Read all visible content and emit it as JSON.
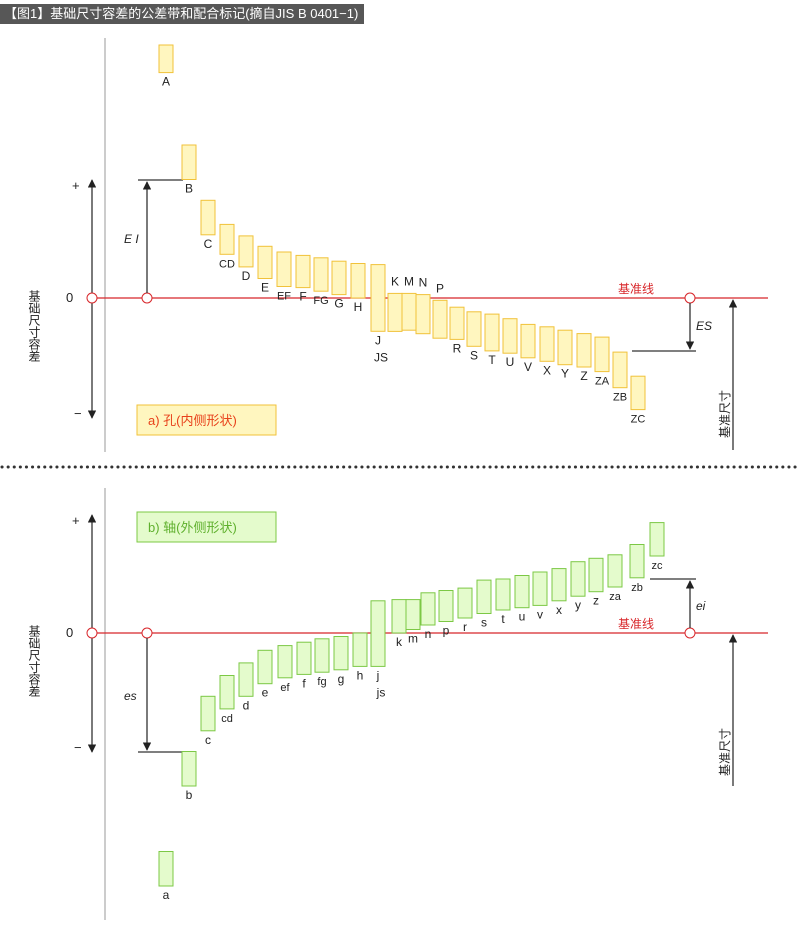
{
  "title": "【图1】基础尺寸容差的公差带和配合标记(摘自JIS B 0401−1)",
  "colors": {
    "hole_fill": "#fff6bf",
    "hole_stroke": "#f1c23a",
    "shaft_fill": "#e4fbcc",
    "shaft_stroke": "#7cc845",
    "zero_line": "#d8262a",
    "hole_label": "#e8411b",
    "shaft_label": "#5fb02d",
    "title_bg": "#575757"
  },
  "hole_section": {
    "label": "a)  孔(内侧形状)",
    "axis_title": "基础尺寸容差",
    "plus": "+",
    "zero": "0",
    "minus": "−",
    "baseline_label": "基准线",
    "deviation_lower": "E I",
    "deviation_upper": "ES",
    "basic_size": "基准尺寸",
    "bands": [
      {
        "name": "A",
        "upper": 2.2,
        "lower": 1.96
      },
      {
        "name": "B",
        "upper": 1.33,
        "lower": 1.03
      },
      {
        "name": "C",
        "upper": 0.85,
        "lower": 0.55
      },
      {
        "name": "CD",
        "upper": 0.64,
        "lower": 0.38
      },
      {
        "name": "D",
        "upper": 0.54,
        "lower": 0.27
      },
      {
        "name": "E",
        "upper": 0.45,
        "lower": 0.17
      },
      {
        "name": "EF",
        "upper": 0.4,
        "lower": 0.1
      },
      {
        "name": "F",
        "upper": 0.37,
        "lower": 0.09
      },
      {
        "name": "FG",
        "upper": 0.35,
        "lower": 0.06
      },
      {
        "name": "G",
        "upper": 0.32,
        "lower": 0.03
      },
      {
        "name": "H",
        "upper": 0.3,
        "lower": 0.0
      },
      {
        "name": "J",
        "upper": 0.29,
        "lower": -0.29
      },
      {
        "name": "K",
        "upper": 0.04,
        "lower": -0.29
      },
      {
        "name": "M",
        "upper": 0.04,
        "lower": -0.28
      },
      {
        "name": "N",
        "upper": 0.03,
        "lower": -0.31
      },
      {
        "name": "P",
        "upper": -0.02,
        "lower": -0.35
      },
      {
        "name": "R",
        "upper": -0.08,
        "lower": -0.36
      },
      {
        "name": "S",
        "upper": -0.12,
        "lower": -0.42
      },
      {
        "name": "T",
        "upper": -0.14,
        "lower": -0.46
      },
      {
        "name": "U",
        "upper": -0.18,
        "lower": -0.48
      },
      {
        "name": "V",
        "upper": -0.23,
        "lower": -0.52
      },
      {
        "name": "X",
        "upper": -0.25,
        "lower": -0.55
      },
      {
        "name": "Y",
        "upper": -0.28,
        "lower": -0.58
      },
      {
        "name": "Z",
        "upper": -0.31,
        "lower": -0.6
      },
      {
        "name": "ZA",
        "upper": -0.34,
        "lower": -0.64
      },
      {
        "name": "ZB",
        "upper": -0.47,
        "lower": -0.78
      },
      {
        "name": "ZC",
        "upper": -0.68,
        "lower": -0.97
      }
    ]
  },
  "shaft_section": {
    "label": "b)  轴(外侧形状)",
    "axis_title": "基础尺寸容差",
    "plus": "+",
    "zero": "0",
    "minus": "−",
    "baseline_label": "基准线",
    "deviation_upper": "es",
    "deviation_lower": "ei",
    "basic_size": "基准尺寸",
    "bands": [
      {
        "name": "a",
        "upper": -1.9,
        "lower": -2.2
      },
      {
        "name": "b",
        "upper": -1.03,
        "lower": -1.33
      },
      {
        "name": "c",
        "upper": -0.55,
        "lower": -0.85
      },
      {
        "name": "cd",
        "upper": -0.37,
        "lower": -0.66
      },
      {
        "name": "d",
        "upper": -0.26,
        "lower": -0.55
      },
      {
        "name": "e",
        "upper": -0.15,
        "lower": -0.44
      },
      {
        "name": "ef",
        "upper": -0.11,
        "lower": -0.39
      },
      {
        "name": "f",
        "upper": -0.08,
        "lower": -0.36
      },
      {
        "name": "fg",
        "upper": -0.05,
        "lower": -0.34
      },
      {
        "name": "g",
        "upper": -0.03,
        "lower": -0.32
      },
      {
        "name": "h",
        "upper": 0.0,
        "lower": -0.29
      },
      {
        "name": "j",
        "upper": 0.28,
        "lower": -0.29
      },
      {
        "name": "k",
        "upper": 0.29,
        "lower": 0.0
      },
      {
        "name": "m",
        "upper": 0.29,
        "lower": 0.03
      },
      {
        "name": "n",
        "upper": 0.35,
        "lower": 0.07
      },
      {
        "name": "p",
        "upper": 0.37,
        "lower": 0.1
      },
      {
        "name": "r",
        "upper": 0.39,
        "lower": 0.13
      },
      {
        "name": "s",
        "upper": 0.46,
        "lower": 0.17
      },
      {
        "name": "t",
        "upper": 0.47,
        "lower": 0.2
      },
      {
        "name": "u",
        "upper": 0.5,
        "lower": 0.22
      },
      {
        "name": "v",
        "upper": 0.53,
        "lower": 0.24
      },
      {
        "name": "x",
        "upper": 0.56,
        "lower": 0.28
      },
      {
        "name": "y",
        "upper": 0.62,
        "lower": 0.32
      },
      {
        "name": "z",
        "upper": 0.65,
        "lower": 0.36
      },
      {
        "name": "za",
        "upper": 0.68,
        "lower": 0.4
      },
      {
        "name": "zb",
        "upper": 0.77,
        "lower": 0.48
      },
      {
        "name": "zc",
        "upper": 0.96,
        "lower": 0.67
      }
    ]
  }
}
